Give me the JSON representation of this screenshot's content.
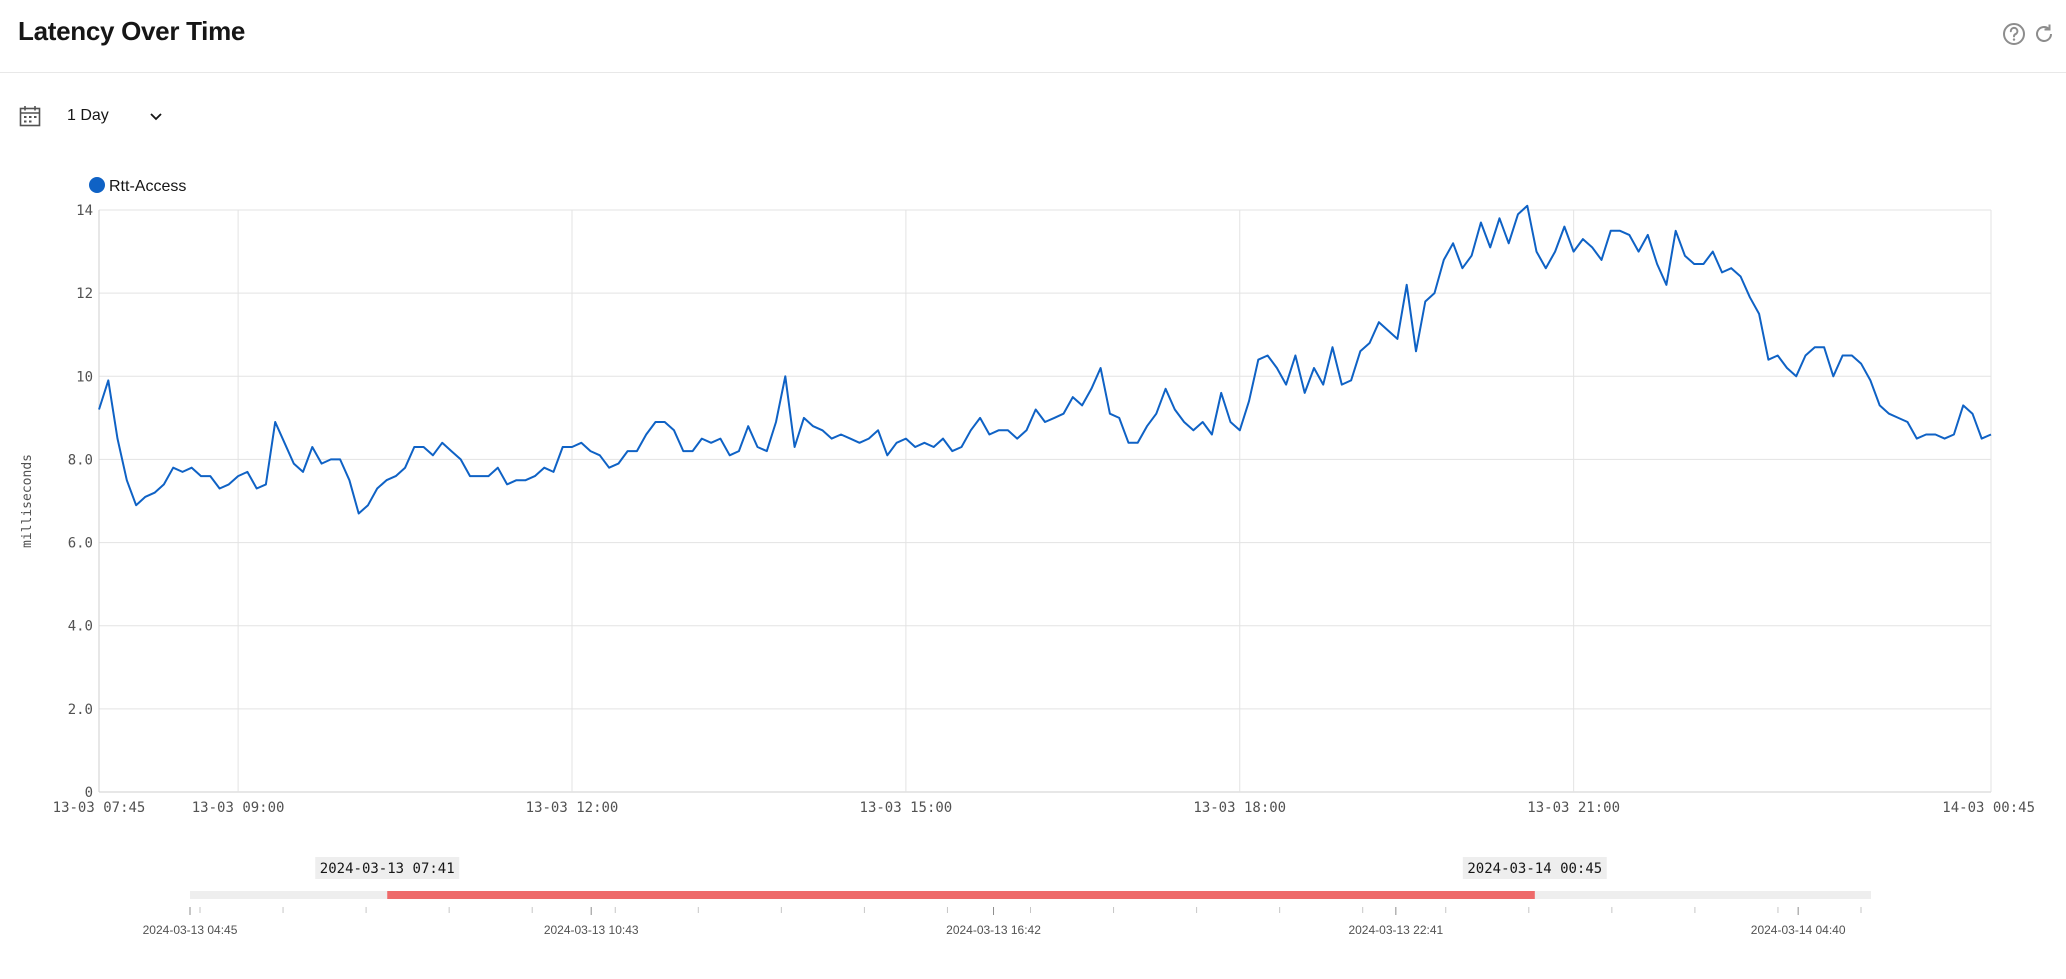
{
  "header": {
    "title": "Latency Over Time",
    "help_icon": "help-circle-icon",
    "refresh_icon": "refresh-icon"
  },
  "toolbar": {
    "calendar_icon": "calendar-icon",
    "range_value": "1 Day",
    "dropdown_icon": "chevron-down-icon"
  },
  "colors": {
    "series": "#0f62c5",
    "brush": "#ee6a6a",
    "grid": "#e3e3e3",
    "brush_track": "#eeeeee"
  },
  "chart_data": {
    "type": "line",
    "title": "",
    "xlabel": "",
    "ylabel": "milliseconds",
    "ylim": [
      0,
      14
    ],
    "xlim": [
      "2024-03-13 07:45",
      "2024-03-14 00:45"
    ],
    "y_ticks": [
      "0",
      "2.0",
      "4.0",
      "6.0",
      "8.0",
      "10",
      "12",
      "14"
    ],
    "x_ticks": [
      {
        "t": "2024-03-13 07:45",
        "label": "13-03 07:45"
      },
      {
        "t": "2024-03-13 09:00",
        "label": "13-03 09:00"
      },
      {
        "t": "2024-03-13 12:00",
        "label": "13-03 12:00"
      },
      {
        "t": "2024-03-13 15:00",
        "label": "13-03 15:00"
      },
      {
        "t": "2024-03-13 18:00",
        "label": "13-03 18:00"
      },
      {
        "t": "2024-03-13 21:00",
        "label": "13-03 21:00"
      },
      {
        "t": "2024-03-14 00:45",
        "label": "14-03 00:45"
      }
    ],
    "grid": true,
    "legend_position": "top-left",
    "series": [
      {
        "name": "Rtt-Access",
        "color": "#0f62c5",
        "points": [
          [
            "2024-03-13 07:45",
            9.2
          ],
          [
            "2024-03-13 07:50",
            9.9
          ],
          [
            "2024-03-13 07:55",
            8.5
          ],
          [
            "2024-03-13 08:00",
            7.5
          ],
          [
            "2024-03-13 08:05",
            6.9
          ],
          [
            "2024-03-13 08:10",
            7.1
          ],
          [
            "2024-03-13 08:15",
            7.2
          ],
          [
            "2024-03-13 08:20",
            7.4
          ],
          [
            "2024-03-13 08:25",
            7.8
          ],
          [
            "2024-03-13 08:30",
            7.7
          ],
          [
            "2024-03-13 08:35",
            7.8
          ],
          [
            "2024-03-13 08:40",
            7.6
          ],
          [
            "2024-03-13 08:45",
            7.6
          ],
          [
            "2024-03-13 08:50",
            7.3
          ],
          [
            "2024-03-13 08:55",
            7.4
          ],
          [
            "2024-03-13 09:00",
            7.6
          ],
          [
            "2024-03-13 09:05",
            7.7
          ],
          [
            "2024-03-13 09:10",
            7.3
          ],
          [
            "2024-03-13 09:15",
            7.4
          ],
          [
            "2024-03-13 09:20",
            8.9
          ],
          [
            "2024-03-13 09:25",
            8.4
          ],
          [
            "2024-03-13 09:30",
            7.9
          ],
          [
            "2024-03-13 09:35",
            7.7
          ],
          [
            "2024-03-13 09:40",
            8.3
          ],
          [
            "2024-03-13 09:45",
            7.9
          ],
          [
            "2024-03-13 09:50",
            8.0
          ],
          [
            "2024-03-13 09:55",
            8.0
          ],
          [
            "2024-03-13 10:00",
            7.5
          ],
          [
            "2024-03-13 10:05",
            6.7
          ],
          [
            "2024-03-13 10:10",
            6.9
          ],
          [
            "2024-03-13 10:15",
            7.3
          ],
          [
            "2024-03-13 10:20",
            7.5
          ],
          [
            "2024-03-13 10:25",
            7.6
          ],
          [
            "2024-03-13 10:30",
            7.8
          ],
          [
            "2024-03-13 10:35",
            8.3
          ],
          [
            "2024-03-13 10:40",
            8.3
          ],
          [
            "2024-03-13 10:45",
            8.1
          ],
          [
            "2024-03-13 10:50",
            8.4
          ],
          [
            "2024-03-13 10:55",
            8.2
          ],
          [
            "2024-03-13 11:00",
            8.0
          ],
          [
            "2024-03-13 11:05",
            7.6
          ],
          [
            "2024-03-13 11:10",
            7.6
          ],
          [
            "2024-03-13 11:15",
            7.6
          ],
          [
            "2024-03-13 11:20",
            7.8
          ],
          [
            "2024-03-13 11:25",
            7.4
          ],
          [
            "2024-03-13 11:30",
            7.5
          ],
          [
            "2024-03-13 11:35",
            7.5
          ],
          [
            "2024-03-13 11:40",
            7.6
          ],
          [
            "2024-03-13 11:45",
            7.8
          ],
          [
            "2024-03-13 11:50",
            7.7
          ],
          [
            "2024-03-13 11:55",
            8.3
          ],
          [
            "2024-03-13 12:00",
            8.3
          ],
          [
            "2024-03-13 12:05",
            8.4
          ],
          [
            "2024-03-13 12:10",
            8.2
          ],
          [
            "2024-03-13 12:15",
            8.1
          ],
          [
            "2024-03-13 12:20",
            7.8
          ],
          [
            "2024-03-13 12:25",
            7.9
          ],
          [
            "2024-03-13 12:30",
            8.2
          ],
          [
            "2024-03-13 12:35",
            8.2
          ],
          [
            "2024-03-13 12:40",
            8.6
          ],
          [
            "2024-03-13 12:45",
            8.9
          ],
          [
            "2024-03-13 12:50",
            8.9
          ],
          [
            "2024-03-13 12:55",
            8.7
          ],
          [
            "2024-03-13 13:00",
            8.2
          ],
          [
            "2024-03-13 13:05",
            8.2
          ],
          [
            "2024-03-13 13:10",
            8.5
          ],
          [
            "2024-03-13 13:15",
            8.4
          ],
          [
            "2024-03-13 13:20",
            8.5
          ],
          [
            "2024-03-13 13:25",
            8.1
          ],
          [
            "2024-03-13 13:30",
            8.2
          ],
          [
            "2024-03-13 13:35",
            8.8
          ],
          [
            "2024-03-13 13:40",
            8.3
          ],
          [
            "2024-03-13 13:45",
            8.2
          ],
          [
            "2024-03-13 13:50",
            8.9
          ],
          [
            "2024-03-13 13:55",
            10.0
          ],
          [
            "2024-03-13 14:00",
            8.3
          ],
          [
            "2024-03-13 14:05",
            9.0
          ],
          [
            "2024-03-13 14:10",
            8.8
          ],
          [
            "2024-03-13 14:15",
            8.7
          ],
          [
            "2024-03-13 14:20",
            8.5
          ],
          [
            "2024-03-13 14:25",
            8.6
          ],
          [
            "2024-03-13 14:30",
            8.5
          ],
          [
            "2024-03-13 14:35",
            8.4
          ],
          [
            "2024-03-13 14:40",
            8.5
          ],
          [
            "2024-03-13 14:45",
            8.7
          ],
          [
            "2024-03-13 14:50",
            8.1
          ],
          [
            "2024-03-13 14:55",
            8.4
          ],
          [
            "2024-03-13 15:00",
            8.5
          ],
          [
            "2024-03-13 15:05",
            8.3
          ],
          [
            "2024-03-13 15:10",
            8.4
          ],
          [
            "2024-03-13 15:15",
            8.3
          ],
          [
            "2024-03-13 15:20",
            8.5
          ],
          [
            "2024-03-13 15:25",
            8.2
          ],
          [
            "2024-03-13 15:30",
            8.3
          ],
          [
            "2024-03-13 15:35",
            8.7
          ],
          [
            "2024-03-13 15:40",
            9.0
          ],
          [
            "2024-03-13 15:45",
            8.6
          ],
          [
            "2024-03-13 15:50",
            8.7
          ],
          [
            "2024-03-13 15:55",
            8.7
          ],
          [
            "2024-03-13 16:00",
            8.5
          ],
          [
            "2024-03-13 16:05",
            8.7
          ],
          [
            "2024-03-13 16:10",
            9.2
          ],
          [
            "2024-03-13 16:15",
            8.9
          ],
          [
            "2024-03-13 16:20",
            9.0
          ],
          [
            "2024-03-13 16:25",
            9.1
          ],
          [
            "2024-03-13 16:30",
            9.5
          ],
          [
            "2024-03-13 16:35",
            9.3
          ],
          [
            "2024-03-13 16:40",
            9.7
          ],
          [
            "2024-03-13 16:45",
            10.2
          ],
          [
            "2024-03-13 16:50",
            9.1
          ],
          [
            "2024-03-13 16:55",
            9.0
          ],
          [
            "2024-03-13 17:00",
            8.4
          ],
          [
            "2024-03-13 17:05",
            8.4
          ],
          [
            "2024-03-13 17:10",
            8.8
          ],
          [
            "2024-03-13 17:15",
            9.1
          ],
          [
            "2024-03-13 17:20",
            9.7
          ],
          [
            "2024-03-13 17:25",
            9.2
          ],
          [
            "2024-03-13 17:30",
            8.9
          ],
          [
            "2024-03-13 17:35",
            8.7
          ],
          [
            "2024-03-13 17:40",
            8.9
          ],
          [
            "2024-03-13 17:45",
            8.6
          ],
          [
            "2024-03-13 17:50",
            9.6
          ],
          [
            "2024-03-13 17:55",
            8.9
          ],
          [
            "2024-03-13 18:00",
            8.7
          ],
          [
            "2024-03-13 18:05",
            9.4
          ],
          [
            "2024-03-13 18:10",
            10.4
          ],
          [
            "2024-03-13 18:15",
            10.5
          ],
          [
            "2024-03-13 18:20",
            10.2
          ],
          [
            "2024-03-13 18:25",
            9.8
          ],
          [
            "2024-03-13 18:30",
            10.5
          ],
          [
            "2024-03-13 18:35",
            9.6
          ],
          [
            "2024-03-13 18:40",
            10.2
          ],
          [
            "2024-03-13 18:45",
            9.8
          ],
          [
            "2024-03-13 18:50",
            10.7
          ],
          [
            "2024-03-13 18:55",
            9.8
          ],
          [
            "2024-03-13 19:00",
            9.9
          ],
          [
            "2024-03-13 19:05",
            10.6
          ],
          [
            "2024-03-13 19:10",
            10.8
          ],
          [
            "2024-03-13 19:15",
            11.3
          ],
          [
            "2024-03-13 19:20",
            11.1
          ],
          [
            "2024-03-13 19:25",
            10.9
          ],
          [
            "2024-03-13 19:30",
            12.2
          ],
          [
            "2024-03-13 19:35",
            10.6
          ],
          [
            "2024-03-13 19:40",
            11.8
          ],
          [
            "2024-03-13 19:45",
            12.0
          ],
          [
            "2024-03-13 19:50",
            12.8
          ],
          [
            "2024-03-13 19:55",
            13.2
          ],
          [
            "2024-03-13 20:00",
            12.6
          ],
          [
            "2024-03-13 20:05",
            12.9
          ],
          [
            "2024-03-13 20:10",
            13.7
          ],
          [
            "2024-03-13 20:15",
            13.1
          ],
          [
            "2024-03-13 20:20",
            13.8
          ],
          [
            "2024-03-13 20:25",
            13.2
          ],
          [
            "2024-03-13 20:30",
            13.9
          ],
          [
            "2024-03-13 20:35",
            14.1
          ],
          [
            "2024-03-13 20:40",
            13.0
          ],
          [
            "2024-03-13 20:45",
            12.6
          ],
          [
            "2024-03-13 20:50",
            13.0
          ],
          [
            "2024-03-13 20:55",
            13.6
          ],
          [
            "2024-03-13 21:00",
            13.0
          ],
          [
            "2024-03-13 21:05",
            13.3
          ],
          [
            "2024-03-13 21:10",
            13.1
          ],
          [
            "2024-03-13 21:15",
            12.8
          ],
          [
            "2024-03-13 21:20",
            13.5
          ],
          [
            "2024-03-13 21:25",
            13.5
          ],
          [
            "2024-03-13 21:30",
            13.4
          ],
          [
            "2024-03-13 21:35",
            13.0
          ],
          [
            "2024-03-13 21:40",
            13.4
          ],
          [
            "2024-03-13 21:45",
            12.7
          ],
          [
            "2024-03-13 21:50",
            12.2
          ],
          [
            "2024-03-13 21:55",
            13.5
          ],
          [
            "2024-03-13 22:00",
            12.9
          ],
          [
            "2024-03-13 22:05",
            12.7
          ],
          [
            "2024-03-13 22:10",
            12.7
          ],
          [
            "2024-03-13 22:15",
            13.0
          ],
          [
            "2024-03-13 22:20",
            12.5
          ],
          [
            "2024-03-13 22:25",
            12.6
          ],
          [
            "2024-03-13 22:30",
            12.4
          ],
          [
            "2024-03-13 22:35",
            11.9
          ],
          [
            "2024-03-13 22:40",
            11.5
          ],
          [
            "2024-03-13 22:45",
            10.4
          ],
          [
            "2024-03-13 22:50",
            10.5
          ],
          [
            "2024-03-13 22:55",
            10.2
          ],
          [
            "2024-03-13 23:00",
            10.0
          ],
          [
            "2024-03-13 23:05",
            10.5
          ],
          [
            "2024-03-13 23:10",
            10.7
          ],
          [
            "2024-03-13 23:15",
            10.7
          ],
          [
            "2024-03-13 23:20",
            10.0
          ],
          [
            "2024-03-13 23:25",
            10.5
          ],
          [
            "2024-03-13 23:30",
            10.5
          ],
          [
            "2024-03-13 23:35",
            10.3
          ],
          [
            "2024-03-13 23:40",
            9.9
          ],
          [
            "2024-03-13 23:45",
            9.3
          ],
          [
            "2024-03-13 23:50",
            9.1
          ],
          [
            "2024-03-13 23:55",
            9.0
          ],
          [
            "2024-03-14 00:00",
            8.9
          ],
          [
            "2024-03-14 00:05",
            8.5
          ],
          [
            "2024-03-14 00:10",
            8.6
          ],
          [
            "2024-03-14 00:15",
            8.6
          ],
          [
            "2024-03-14 00:20",
            8.5
          ],
          [
            "2024-03-14 00:25",
            8.6
          ],
          [
            "2024-03-14 00:30",
            9.3
          ],
          [
            "2024-03-14 00:35",
            9.1
          ],
          [
            "2024-03-14 00:40",
            8.5
          ],
          [
            "2024-03-14 00:45",
            8.6
          ]
        ]
      }
    ],
    "brush": {
      "domain": [
        "2024-03-13 04:45",
        "2024-03-14 05:45"
      ],
      "selected_start": "2024-03-13 07:41",
      "selected_end": "2024-03-14 00:45",
      "start_label": "2024-03-13 07:41",
      "end_label": "2024-03-14 00:45",
      "axis_labels": [
        {
          "t": "2024-03-13 04:45",
          "label": "2024-03-13 04:45"
        },
        {
          "t": "2024-03-13 10:43",
          "label": "2024-03-13 10:43"
        },
        {
          "t": "2024-03-13 16:42",
          "label": "2024-03-13 16:42"
        },
        {
          "t": "2024-03-13 22:41",
          "label": "2024-03-13 22:41"
        },
        {
          "t": "2024-03-14 04:40",
          "label": "2024-03-14 04:40"
        }
      ]
    }
  }
}
